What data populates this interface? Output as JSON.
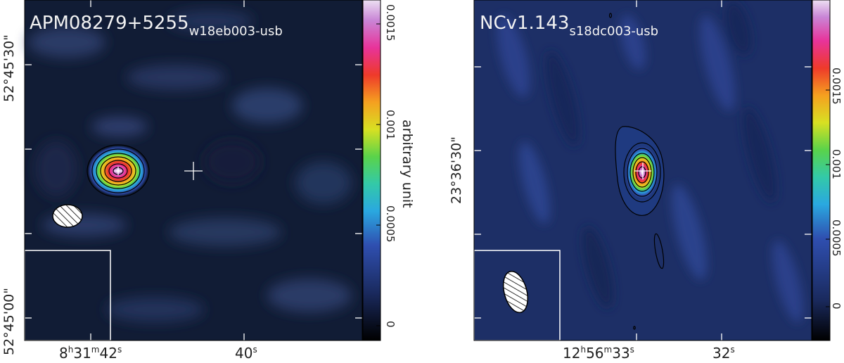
{
  "left": {
    "title_main": "APM08279+5255",
    "title_sub": "w18eb003-usb",
    "y_ticks": [
      "52°45'30\"",
      "52°45'00\""
    ],
    "x_ticks": [
      {
        "h": "8",
        "m": "31",
        "s": "42"
      },
      {
        "s": "40"
      }
    ],
    "colorbar_ticks": [
      "0",
      "0.0005",
      "0.001",
      "0.0015"
    ],
    "colorbar_label": "arbitrary unit"
  },
  "right": {
    "title_main": "NCv1.143",
    "title_sub": "s18dc003-usb",
    "y_ticks": [
      "23°36'30\""
    ],
    "x_ticks": [
      {
        "h": "12",
        "m": "56",
        "s": "33"
      },
      {
        "s": "32"
      }
    ],
    "colorbar_ticks": [
      "0",
      "0.0005",
      "0.001",
      "0.0015"
    ]
  },
  "colors": {
    "background": "#0e1a34",
    "contour": "#000000",
    "colormap": [
      "#000000",
      "#1a2a5e",
      "#2f4fb0",
      "#2aa8e0",
      "#33c9a8",
      "#5ad34a",
      "#d8e022",
      "#f5a020",
      "#ee3a2a",
      "#e8339a",
      "#c985d6",
      "#ffffff"
    ]
  }
}
